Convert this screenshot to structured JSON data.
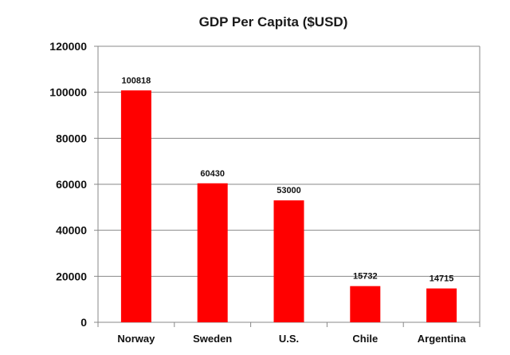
{
  "chart_data": {
    "type": "bar",
    "title": "GDP Per Capita ($USD)",
    "xlabel": "",
    "ylabel": "",
    "categories": [
      "Norway",
      "Sweden",
      "U.S.",
      "Chile",
      "Argentina"
    ],
    "values": [
      100818,
      60430,
      53000,
      15732,
      14715
    ],
    "data_labels": [
      "100818",
      "60430",
      "53000",
      "15732",
      "14715"
    ],
    "ylim": [
      0,
      120000
    ],
    "y_ticks": [
      0,
      20000,
      40000,
      60000,
      80000,
      100000,
      120000
    ],
    "y_tick_labels": [
      "0",
      "20000",
      "40000",
      "60000",
      "80000",
      "100000",
      "120000"
    ],
    "grid": true,
    "legend": "none",
    "colors": {
      "bar": "#ff0000",
      "grid": "#888888",
      "axis": "#888888",
      "background": "#ffffff"
    }
  }
}
